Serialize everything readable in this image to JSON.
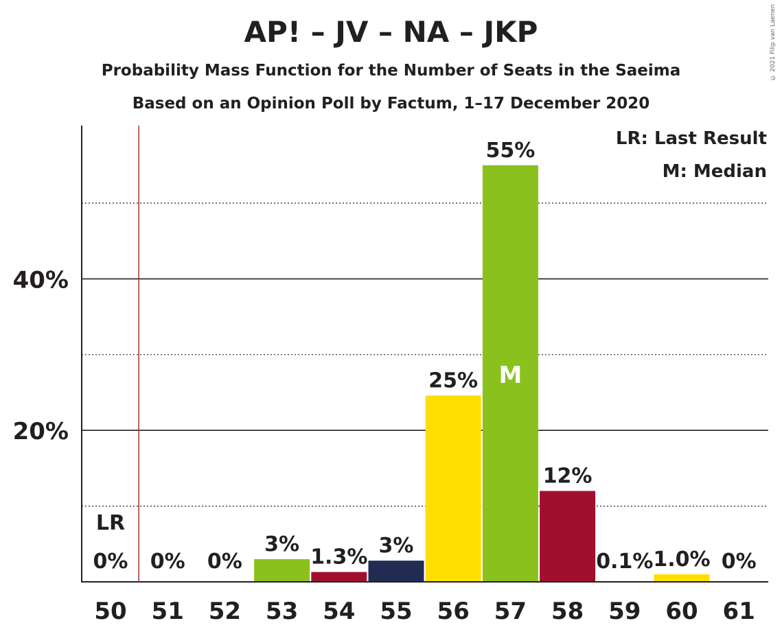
{
  "chart_data": {
    "type": "bar",
    "title": "AP! – JV – NA – JKP",
    "subtitle": "Probability Mass Function for the Number of Seats in the Saeima",
    "subtitle2": "Based on an Opinion Poll by Factum, 1–17 December 2020",
    "copyright": "© 2021 Filip van Laenen",
    "categories": [
      "50",
      "51",
      "52",
      "53",
      "54",
      "55",
      "56",
      "57",
      "58",
      "59",
      "60",
      "61"
    ],
    "values": [
      0,
      0,
      0,
      3,
      1.3,
      2.8,
      24.6,
      55,
      12,
      0.1,
      1.0,
      0
    ],
    "value_labels": [
      "0%",
      "0%",
      "0%",
      "3%",
      "1.3%",
      "3%",
      "25%",
      "55%",
      "12%",
      "0.1%",
      "1.0%",
      "0%"
    ],
    "colors": [
      "#8BC11C",
      "#8BC11C",
      "#8BC11C",
      "#8BC11C",
      "#A0102E",
      "#222B52",
      "#FFDE00",
      "#8BC11C",
      "#A0102E",
      "#8BC11C",
      "#FFDE00",
      "#8BC11C"
    ],
    "ylim": [
      0,
      60
    ],
    "yticks": [
      20,
      40
    ],
    "ytick_labels": [
      "20%",
      "40%"
    ],
    "minor_gridlines": [
      10,
      30,
      50
    ],
    "last_result_seat": "50",
    "last_result_label": "LR",
    "median_seat": "57",
    "median_label": "M",
    "legend": [
      "LR: Last Result",
      "M: Median"
    ],
    "legend_position": "top-right"
  }
}
